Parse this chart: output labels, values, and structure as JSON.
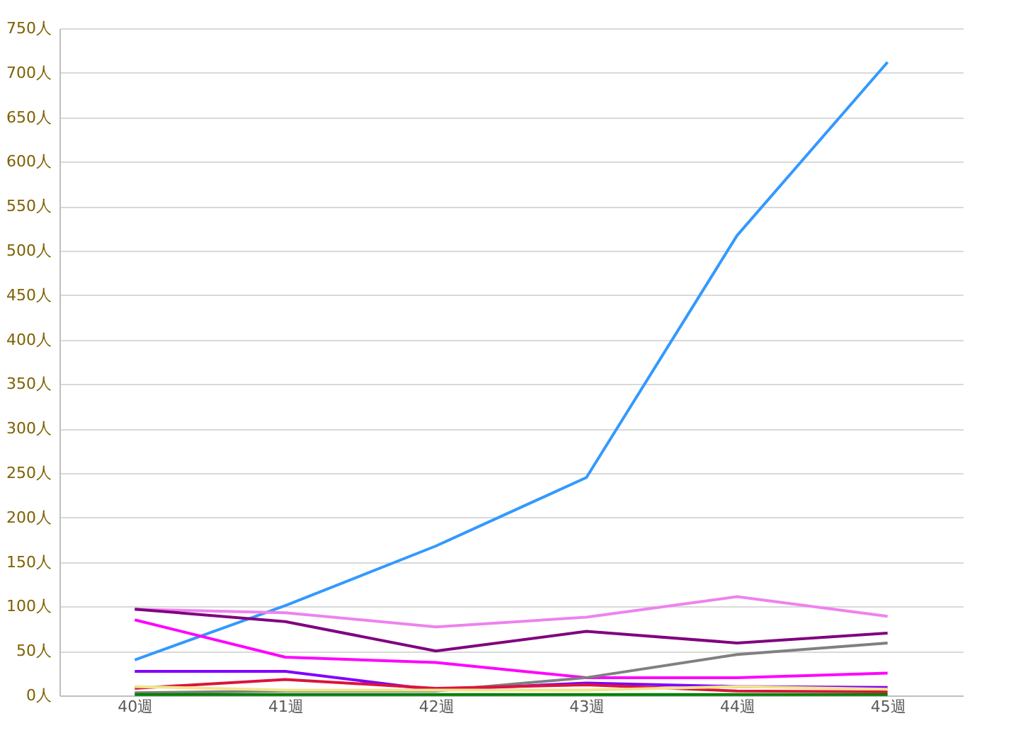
{
  "chart_data": {
    "type": "line",
    "categories": [
      "40週",
      "41週",
      "42週",
      "43週",
      "44週",
      "45週"
    ],
    "ylim": [
      0,
      750
    ],
    "yticks": [
      {
        "value": 0,
        "label": "0人"
      },
      {
        "value": 50,
        "label": "50人"
      },
      {
        "value": 100,
        "label": "100人"
      },
      {
        "value": 150,
        "label": "150人"
      },
      {
        "value": 200,
        "label": "200人"
      },
      {
        "value": 250,
        "label": "250人"
      },
      {
        "value": 300,
        "label": "300人"
      },
      {
        "value": 350,
        "label": "350人"
      },
      {
        "value": 400,
        "label": "400人"
      },
      {
        "value": 450,
        "label": "450人"
      },
      {
        "value": 500,
        "label": "500人"
      },
      {
        "value": 550,
        "label": "550人"
      },
      {
        "value": 600,
        "label": "600人"
      },
      {
        "value": 650,
        "label": "650人"
      },
      {
        "value": 700,
        "label": "700人"
      },
      {
        "value": 750,
        "label": "750人"
      }
    ],
    "grid": "y",
    "legend": false,
    "marker": "none",
    "series": [
      {
        "color": "#3399ff",
        "values": [
          40,
          101,
          168,
          245,
          517,
          712
        ]
      },
      {
        "color": "#ee82ee",
        "values": [
          97,
          93,
          77,
          88,
          111,
          89
        ]
      },
      {
        "color": "#800080",
        "values": [
          97,
          83,
          50,
          72,
          59,
          70
        ]
      },
      {
        "color": "#ff00ff",
        "values": [
          85,
          43,
          37,
          20,
          20,
          25
        ]
      },
      {
        "color": "#8000ff",
        "values": [
          27,
          27,
          6,
          14,
          10,
          9
        ]
      },
      {
        "color": "#808080",
        "values": [
          3,
          5,
          5,
          20,
          46,
          59
        ]
      },
      {
        "color": "#dc143c",
        "values": [
          8,
          18,
          8,
          12,
          5,
          4
        ]
      },
      {
        "color": "#f0e68c",
        "values": [
          10,
          6,
          6,
          6,
          10,
          7
        ]
      },
      {
        "color": "#008000",
        "values": [
          1,
          1,
          1,
          1,
          1,
          1
        ]
      }
    ]
  }
}
